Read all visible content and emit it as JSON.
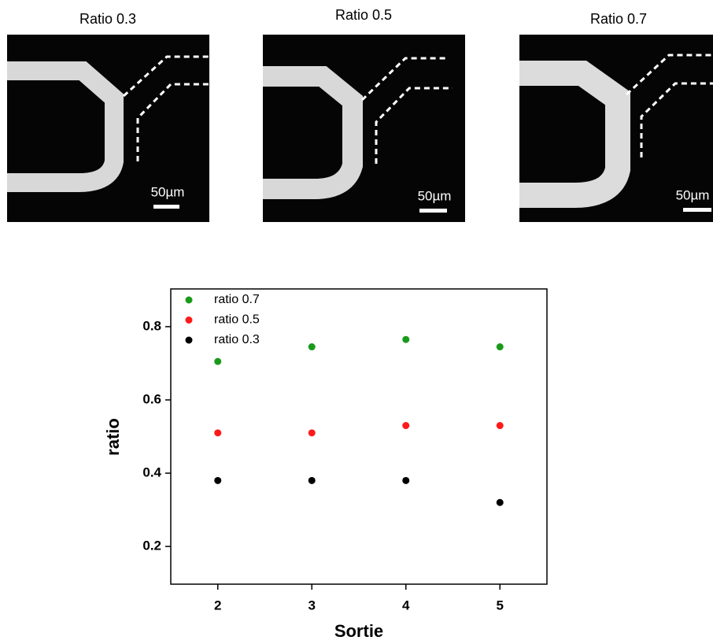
{
  "panels": [
    {
      "title": "Ratio 0.3",
      "scale_label": "50µm"
    },
    {
      "title": "Ratio 0.5",
      "scale_label": "50µm"
    },
    {
      "title": "Ratio 0.7",
      "scale_label": "50µm"
    }
  ],
  "chart_data": {
    "type": "scatter",
    "x_label": "Sortie",
    "y_label": "ratio",
    "xlim": [
      1.5,
      5.5
    ],
    "xticks": [
      2,
      3,
      4,
      5
    ],
    "ylim": [
      0.097,
      0.903
    ],
    "yticks": [
      0.2,
      0.4,
      0.6,
      0.8
    ],
    "legend": "upper left",
    "series": [
      {
        "name": "ratio 0.7",
        "color": "#1a9a1a",
        "x": [
          2,
          3,
          4,
          5
        ],
        "values": [
          0.705,
          0.745,
          0.765,
          0.745
        ]
      },
      {
        "name": "ratio 0.5",
        "color": "#ff1a1a",
        "x": [
          2,
          3,
          4,
          5
        ],
        "values": [
          0.51,
          0.51,
          0.53,
          0.53
        ]
      },
      {
        "name": "ratio 0.3",
        "color": "#000000",
        "x": [
          2,
          3,
          4,
          5
        ],
        "values": [
          0.38,
          0.38,
          0.38,
          0.32
        ]
      }
    ]
  }
}
